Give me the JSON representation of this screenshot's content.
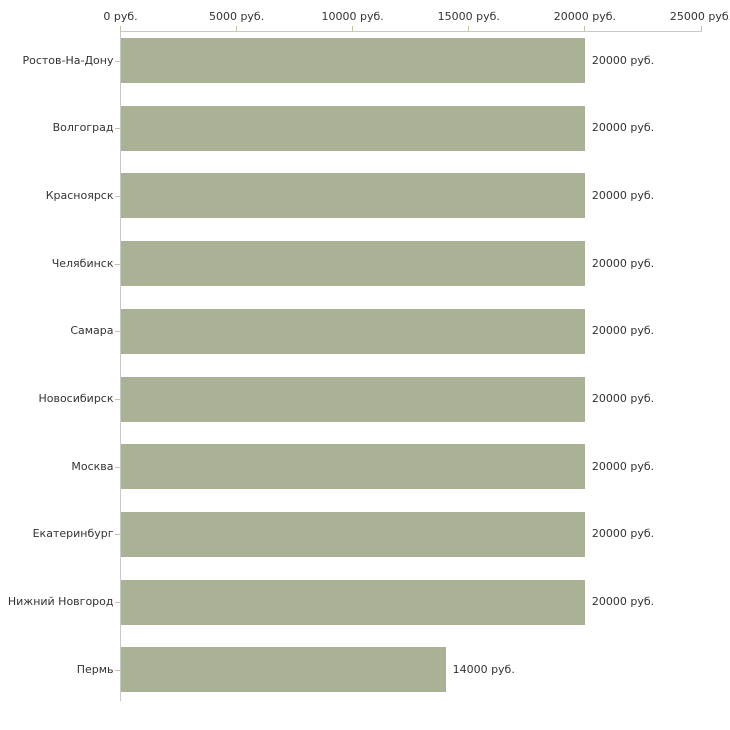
{
  "chart_data": {
    "type": "bar",
    "orientation": "horizontal",
    "title": "",
    "xlabel": "",
    "ylabel": "",
    "grid": false,
    "categories": [
      "Ростов-На-Дону",
      "Волгоград",
      "Красноярск",
      "Челябинск",
      "Самара",
      "Новосибирск",
      "Москва",
      "Екатеринбург",
      "Нижний Новгород",
      "Пермь"
    ],
    "values": [
      20000,
      20000,
      20000,
      20000,
      20000,
      20000,
      20000,
      20000,
      20000,
      14000
    ],
    "value_labels": [
      "20000 руб.",
      "20000 руб.",
      "20000 руб.",
      "20000 руб.",
      "20000 руб.",
      "20000 руб.",
      "20000 руб.",
      "20000 руб.",
      "20000 руб.",
      "14000 руб."
    ],
    "x_axis": {
      "position": "top",
      "min": 0,
      "max": 25000,
      "ticks": [
        0,
        5000,
        10000,
        15000,
        20000,
        25000
      ],
      "tick_labels": [
        "0 руб.",
        "5000 руб.",
        "10000 руб.",
        "15000 руб.",
        "20000 руб.",
        "25000 руб."
      ]
    },
    "colors": {
      "bar": "#a9b294",
      "axis_line": "#c9c9c9",
      "tick": "#c6c69e",
      "text": "#333333",
      "background": "#ffffff"
    }
  }
}
